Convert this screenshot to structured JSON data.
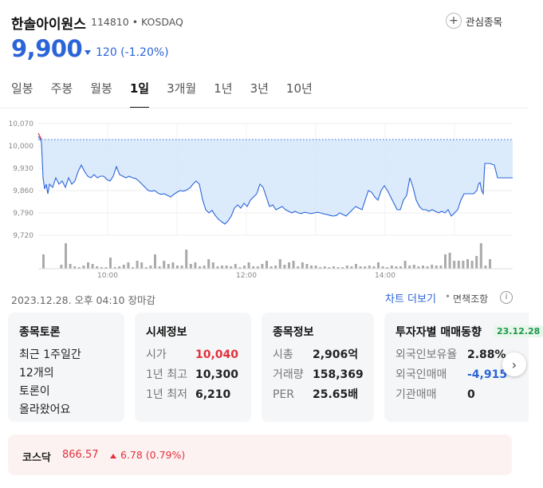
{
  "header": {
    "stock_name": "한솔아이원스",
    "stock_code": "114810 • KOSDAQ",
    "favorite_label": "관심종목",
    "price": "9,900",
    "change": "120 (-1.20%)"
  },
  "tabs": [
    "일봉",
    "주봉",
    "월봉",
    "1일",
    "3개월",
    "1년",
    "3년",
    "10년"
  ],
  "active_tab": "1일",
  "chart_data": {
    "type": "line",
    "y_ticks": [
      "10,070",
      "10,000",
      "9,930",
      "9,860",
      "9,790",
      "9,720"
    ],
    "x_ticks": [
      "10:00",
      "12:00",
      "14:00"
    ],
    "prev_close": 10020,
    "ylim": [
      9720,
      10070
    ],
    "grid": true
  },
  "footer": {
    "timestamp": "2023.12.28. 오후 04:10 장마감",
    "more_chart": "차트 더보기",
    "disclaimer": "면책조항"
  },
  "cards": {
    "discussion": {
      "title": "종목토론",
      "lines": [
        "최근 1주일간",
        "12개의",
        "토론이",
        "올라왔어요"
      ]
    },
    "quote": {
      "title": "시세정보",
      "rows": [
        {
          "k": "시가",
          "v": "10,040"
        },
        {
          "k": "1년 최고",
          "v": "10,300"
        },
        {
          "k": "1년 최저",
          "v": "6,210"
        }
      ]
    },
    "stockinfo": {
      "title": "종목정보",
      "rows": [
        {
          "k": "시총",
          "v": "2,906억"
        },
        {
          "k": "거래량",
          "v": "158,369"
        },
        {
          "k": "PER",
          "v": "25.65배"
        }
      ]
    },
    "investor": {
      "title": "투자자별 매매동향",
      "badge": "23.12.28",
      "rows": [
        {
          "k": "외국인보유율",
          "v": "2.88%"
        },
        {
          "k": "외국인매매",
          "v": "-4,915"
        },
        {
          "k": "기관매매",
          "v": "0"
        }
      ]
    }
  },
  "index": {
    "name": "코스닥",
    "value": "866.57",
    "change": "6.78 (0.79%)"
  },
  "colors": {
    "up": "#e3313c",
    "down": "#2b64d8",
    "fill": "#d6e8fb"
  }
}
